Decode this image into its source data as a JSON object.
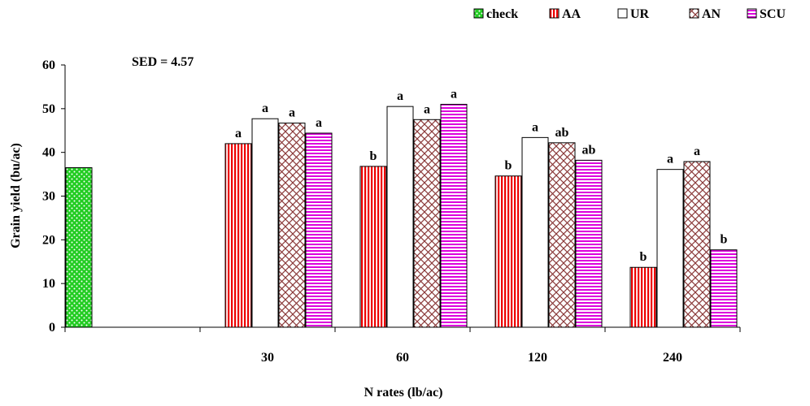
{
  "chart_data": {
    "type": "bar",
    "title": "",
    "annotation": "SED = 4.57",
    "xlabel": "N rates (lb/ac)",
    "ylabel": "Grain yield (bu/ac)",
    "ylim": [
      0,
      60
    ],
    "yticks": [
      "0",
      "10",
      "20",
      "30",
      "40",
      "50",
      "60"
    ],
    "legend_position": "top-right",
    "categories": [
      "",
      "30",
      "60",
      "120",
      "240"
    ],
    "series": [
      {
        "name": "check",
        "color": "#22cc22",
        "pattern": "dots",
        "values": [
          36.5,
          null,
          null,
          null,
          null
        ],
        "labels": [
          "",
          "",
          "",
          "",
          ""
        ]
      },
      {
        "name": "AA",
        "color": "#ee0000",
        "pattern": "vertical",
        "values": [
          null,
          42,
          36.8,
          34.6,
          13.7
        ],
        "labels": [
          "",
          "a",
          "b",
          "b",
          "b"
        ]
      },
      {
        "name": "UR",
        "color": "#000000",
        "pattern": "none",
        "values": [
          null,
          47.7,
          50.5,
          43.4,
          36.1
        ],
        "labels": [
          "",
          "a",
          "a",
          "a",
          "a"
        ]
      },
      {
        "name": "AN",
        "color": "#8b3a3a",
        "pattern": "crosshatch",
        "values": [
          null,
          46.7,
          47.5,
          42.2,
          37.9
        ],
        "labels": [
          "",
          "a",
          "a",
          "ab",
          "a"
        ]
      },
      {
        "name": "SCU",
        "color": "#dd00dd",
        "pattern": "horizontal",
        "values": [
          null,
          44.4,
          51,
          38.2,
          17.7
        ],
        "labels": [
          "",
          "a",
          "a",
          "ab",
          "b"
        ]
      }
    ]
  }
}
